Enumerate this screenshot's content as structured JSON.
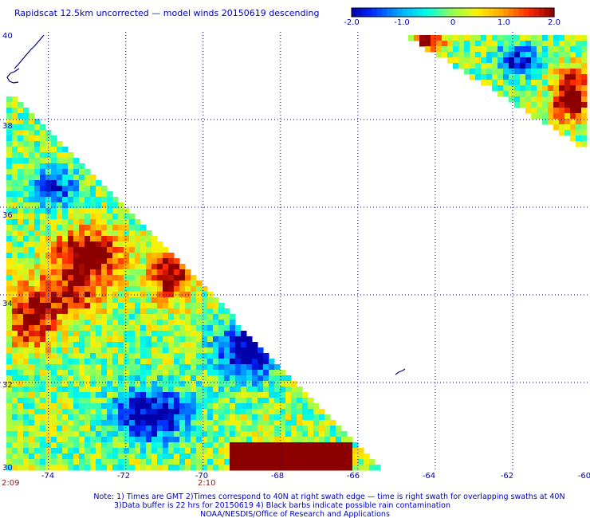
{
  "title": "Rapidscat 12.5km uncorrected — model winds 20150619 descending",
  "colorbar": {
    "labels": [
      "-2.0",
      "-1.0",
      "0",
      "1.0",
      "2.0"
    ],
    "min": -2.0,
    "max": 2.0
  },
  "map": {
    "lon_range": [
      -75.5,
      -60.0
    ],
    "lat_range": [
      30.0,
      40.0
    ],
    "lon_labels": [
      "-74",
      "-72",
      "-70",
      "-68",
      "-66",
      "-64",
      "-62",
      "-60"
    ],
    "lat_labels": [
      "40",
      "38",
      "36",
      "34",
      "32",
      "30"
    ],
    "grid": true
  },
  "times": {
    "left": "2:09",
    "mid": "2:10"
  },
  "notes": {
    "line1": "Note: 1) Times are GMT 2)Times correspond to 40N at right swath edge — time is right swath for overlapping swaths at 40N",
    "line2": "3)Data buffer is 22 hrs for 20150619 4) Black barbs indicate possible rain contamination",
    "line3": "NOAA/NESDIS/Office of Research and Applications"
  },
  "colors": {
    "label": "#0000c0",
    "time": "#8b1a1a",
    "grid": "#000060"
  }
}
